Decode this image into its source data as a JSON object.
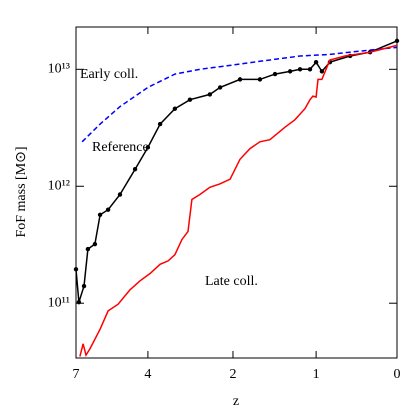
{
  "chart_data": {
    "type": "line",
    "xlabel": "z",
    "ylabel": "FoF mass [M⊙]",
    "xlim": [
      0,
      1
    ],
    "xticks": [
      {
        "value": 0,
        "label": "7"
      },
      {
        "value": 0.224,
        "label": "4"
      },
      {
        "value": 0.489,
        "label": "2"
      },
      {
        "value": 0.748,
        "label": "1"
      },
      {
        "value": 1,
        "label": "0"
      }
    ],
    "ylim": [
      34000000000.0,
      23000000000000.0
    ],
    "yscale": "log",
    "yticks": [
      {
        "value": 100000000000.0,
        "label": "10¹¹"
      },
      {
        "value": 1000000000000.0,
        "label": "10¹²"
      },
      {
        "value": 10000000000000.0,
        "label": "10¹³"
      }
    ],
    "series": [
      {
        "name": "Reference",
        "color": "#000000",
        "dash": false,
        "markers": true,
        "x": [
          0,
          0.009,
          0.025,
          0.037,
          0.059,
          0.075,
          0.1,
          0.137,
          0.184,
          0.224,
          0.262,
          0.308,
          0.355,
          0.417,
          0.449,
          0.511,
          0.573,
          0.62,
          0.667,
          0.698,
          0.729,
          0.748,
          0.766,
          0.791,
          0.854,
          0.916,
          1
        ],
        "values": [
          195000000000.0,
          102000000000.0,
          140000000000.0,
          290000000000.0,
          320000000000.0,
          570000000000.0,
          630000000000.0,
          850000000000.0,
          1400000000000.0,
          2150000000000.0,
          3400000000000.0,
          4600000000000.0,
          5500000000000.0,
          6100000000000.0,
          7000000000000.0,
          8200000000000.0,
          8200000000000.0,
          9100000000000.0,
          9600000000000.0,
          10000000000000.0,
          10000000000000.0,
          11500000000000.0,
          9600000000000.0,
          11500000000000.0,
          13000000000000.0,
          14000000000000.0,
          17500000000000.0
        ]
      },
      {
        "name": "Early coll.",
        "color": "#0000ff",
        "dash": true,
        "markers": false,
        "x": [
          0.019,
          0.075,
          0.137,
          0.224,
          0.308,
          0.386,
          0.48,
          0.573,
          0.698,
          0.791,
          0.885,
          1
        ],
        "values": [
          2400000000000.0,
          3400000000000.0,
          4800000000000.0,
          7000000000000.0,
          9100000000000.0,
          10000000000000.0,
          10800000000000.0,
          11700000000000.0,
          13000000000000.0,
          13400000000000.0,
          14300000000000.0,
          15400000000000.0
        ]
      },
      {
        "name": "Late coll.",
        "color": "#ff0000",
        "dash": false,
        "markers": false,
        "x": [
          0.012,
          0.022,
          0.031,
          0.044,
          0.075,
          0.1,
          0.131,
          0.168,
          0.199,
          0.231,
          0.262,
          0.287,
          0.308,
          0.33,
          0.349,
          0.361,
          0.386,
          0.417,
          0.449,
          0.48,
          0.511,
          0.542,
          0.573,
          0.604,
          0.651,
          0.682,
          0.713,
          0.729,
          0.738,
          0.748,
          0.754,
          0.766,
          0.791,
          0.838,
          0.916,
          1
        ],
        "values": [
          35000000000.0,
          45000000000.0,
          36000000000.0,
          41000000000.0,
          60000000000.0,
          86000000000.0,
          98000000000.0,
          130000000000.0,
          155000000000.0,
          180000000000.0,
          215000000000.0,
          230000000000.0,
          260000000000.0,
          350000000000.0,
          410000000000.0,
          770000000000.0,
          850000000000.0,
          980000000000.0,
          1050000000000.0,
          1150000000000.0,
          1700000000000.0,
          2100000000000.0,
          2400000000000.0,
          2500000000000.0,
          3200000000000.0,
          3700000000000.0,
          4600000000000.0,
          5500000000000.0,
          5900000000000.0,
          5800000000000.0,
          8200000000000.0,
          8200000000000.0,
          12000000000000.0,
          13000000000000.0,
          14000000000000.0,
          16000000000000.0
        ]
      }
    ]
  }
}
